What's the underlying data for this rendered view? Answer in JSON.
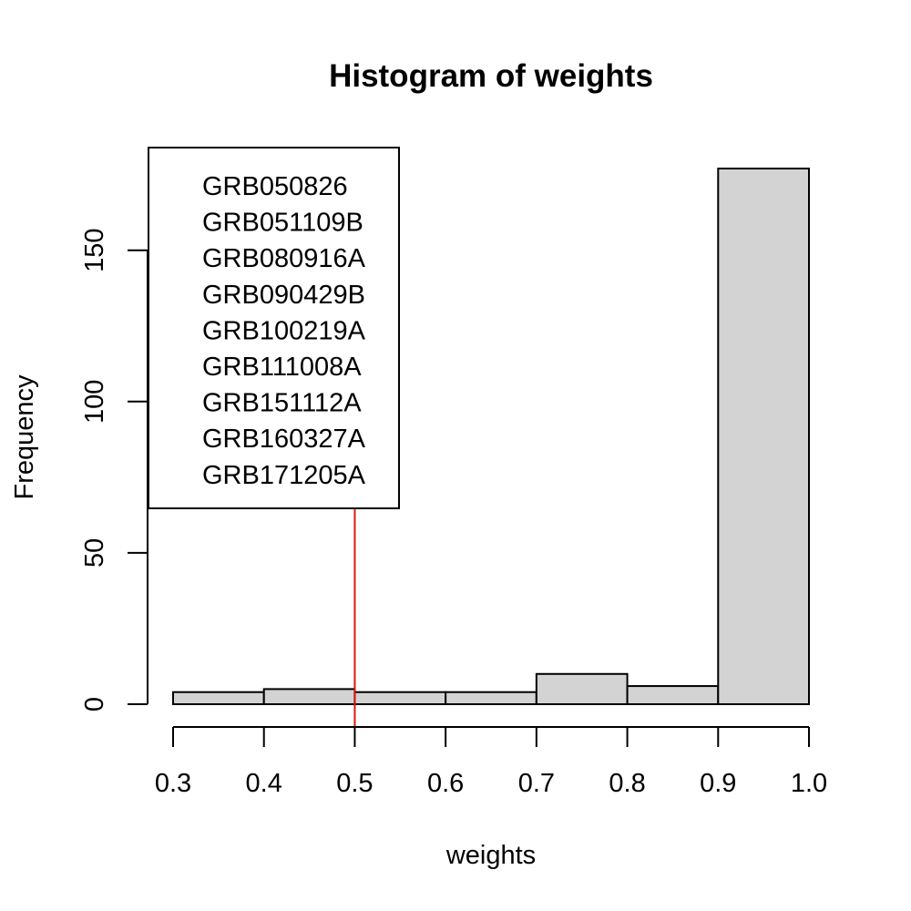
{
  "chart_data": {
    "type": "bar",
    "title": "Histogram of weights",
    "xlabel": "weights",
    "ylabel": "Frequency",
    "bins": [
      {
        "start": 0.3,
        "end": 0.4,
        "count": 4
      },
      {
        "start": 0.4,
        "end": 0.5,
        "count": 5
      },
      {
        "start": 0.5,
        "end": 0.6,
        "count": 4
      },
      {
        "start": 0.6,
        "end": 0.7,
        "count": 4
      },
      {
        "start": 0.7,
        "end": 0.8,
        "count": 10
      },
      {
        "start": 0.8,
        "end": 0.9,
        "count": 6
      },
      {
        "start": 0.9,
        "end": 1.0,
        "count": 177
      }
    ],
    "xlim": [
      0.3,
      1.0
    ],
    "ylim": [
      0,
      177
    ],
    "x_ticks": [
      "0.3",
      "0.4",
      "0.5",
      "0.6",
      "0.7",
      "0.8",
      "0.9",
      "1.0"
    ],
    "y_ticks": [
      "0",
      "50",
      "100",
      "150"
    ],
    "bar_color": "#d3d3d3",
    "reference_line": {
      "x": 0.5,
      "color": "#e0140f"
    },
    "legend": {
      "placement": "top-left",
      "entries": [
        "GRB050826",
        "GRB051109B",
        "GRB080916A",
        "GRB090429B",
        "GRB100219A",
        "GRB111008A",
        "GRB151112A",
        "GRB160327A",
        "GRB171205A"
      ]
    },
    "grid": false
  }
}
